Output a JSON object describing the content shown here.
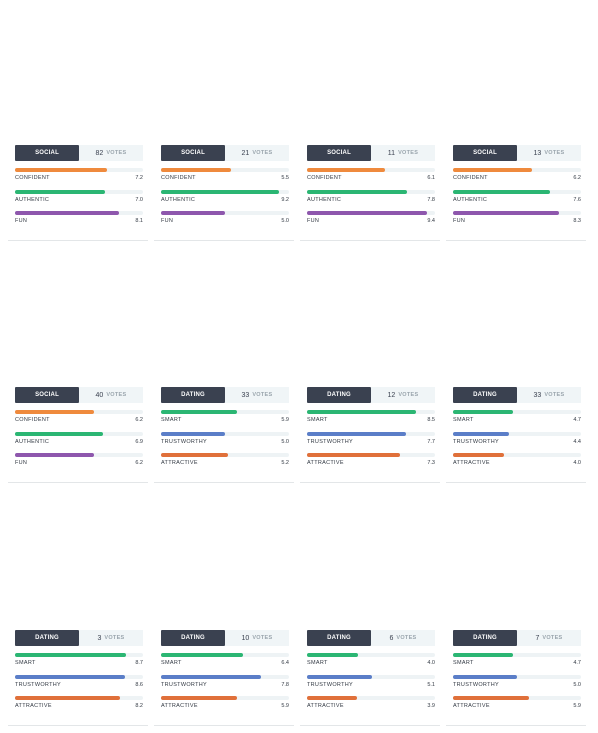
{
  "colors": {
    "confident": "#ef8a3d",
    "authentic": "#2bb673",
    "fun": "#8e57ad",
    "smart": "#2bb673",
    "trustworthy": "#5b7ec8",
    "attractive": "#e0703a"
  },
  "votes_label": "VOTES",
  "cards": [
    {
      "category": "SOCIAL",
      "votes": "82",
      "metrics": [
        {
          "label": "CONFIDENT",
          "score": "7.2",
          "key": "confident"
        },
        {
          "label": "AUTHENTIC",
          "score": "7.0",
          "key": "authentic"
        },
        {
          "label": "FUN",
          "score": "8.1",
          "key": "fun"
        }
      ]
    },
    {
      "category": "SOCIAL",
      "votes": "21",
      "metrics": [
        {
          "label": "CONFIDENT",
          "score": "5.5",
          "key": "confident"
        },
        {
          "label": "AUTHENTIC",
          "score": "9.2",
          "key": "authentic"
        },
        {
          "label": "FUN",
          "score": "5.0",
          "key": "fun"
        }
      ]
    },
    {
      "category": "SOCIAL",
      "votes": "11",
      "metrics": [
        {
          "label": "CONFIDENT",
          "score": "6.1",
          "key": "confident"
        },
        {
          "label": "AUTHENTIC",
          "score": "7.8",
          "key": "authentic"
        },
        {
          "label": "FUN",
          "score": "9.4",
          "key": "fun"
        }
      ]
    },
    {
      "category": "SOCIAL",
      "votes": "13",
      "metrics": [
        {
          "label": "CONFIDENT",
          "score": "6.2",
          "key": "confident"
        },
        {
          "label": "AUTHENTIC",
          "score": "7.6",
          "key": "authentic"
        },
        {
          "label": "FUN",
          "score": "8.3",
          "key": "fun"
        }
      ]
    },
    {
      "category": "SOCIAL",
      "votes": "40",
      "metrics": [
        {
          "label": "CONFIDENT",
          "score": "6.2",
          "key": "confident"
        },
        {
          "label": "AUTHENTIC",
          "score": "6.9",
          "key": "authentic"
        },
        {
          "label": "FUN",
          "score": "6.2",
          "key": "fun"
        }
      ]
    },
    {
      "category": "DATING",
      "votes": "33",
      "metrics": [
        {
          "label": "SMART",
          "score": "5.9",
          "key": "smart"
        },
        {
          "label": "TRUSTWORTHY",
          "score": "5.0",
          "key": "trustworthy"
        },
        {
          "label": "ATTRACTIVE",
          "score": "5.2",
          "key": "attractive"
        }
      ]
    },
    {
      "category": "DATING",
      "votes": "12",
      "metrics": [
        {
          "label": "SMART",
          "score": "8.5",
          "key": "smart"
        },
        {
          "label": "TRUSTWORTHY",
          "score": "7.7",
          "key": "trustworthy"
        },
        {
          "label": "ATTRACTIVE",
          "score": "7.3",
          "key": "attractive"
        }
      ]
    },
    {
      "category": "DATING",
      "votes": "33",
      "metrics": [
        {
          "label": "SMART",
          "score": "4.7",
          "key": "smart"
        },
        {
          "label": "TRUSTWORTHY",
          "score": "4.4",
          "key": "trustworthy"
        },
        {
          "label": "ATTRACTIVE",
          "score": "4.0",
          "key": "attractive"
        }
      ]
    },
    {
      "category": "DATING",
      "votes": "3",
      "metrics": [
        {
          "label": "SMART",
          "score": "8.7",
          "key": "smart"
        },
        {
          "label": "TRUSTWORTHY",
          "score": "8.6",
          "key": "trustworthy"
        },
        {
          "label": "ATTRACTIVE",
          "score": "8.2",
          "key": "attractive"
        }
      ]
    },
    {
      "category": "DATING",
      "votes": "10",
      "metrics": [
        {
          "label": "SMART",
          "score": "6.4",
          "key": "smart"
        },
        {
          "label": "TRUSTWORTHY",
          "score": "7.8",
          "key": "trustworthy"
        },
        {
          "label": "ATTRACTIVE",
          "score": "5.9",
          "key": "attractive"
        }
      ]
    },
    {
      "category": "DATING",
      "votes": "6",
      "metrics": [
        {
          "label": "SMART",
          "score": "4.0",
          "key": "smart"
        },
        {
          "label": "TRUSTWORTHY",
          "score": "5.1",
          "key": "trustworthy"
        },
        {
          "label": "ATTRACTIVE",
          "score": "3.9",
          "key": "attractive"
        }
      ]
    },
    {
      "category": "DATING",
      "votes": "7",
      "metrics": [
        {
          "label": "SMART",
          "score": "4.7",
          "key": "smart"
        },
        {
          "label": "TRUSTWORTHY",
          "score": "5.0",
          "key": "trustworthy"
        },
        {
          "label": "ATTRACTIVE",
          "score": "5.9",
          "key": "attractive"
        }
      ]
    }
  ]
}
